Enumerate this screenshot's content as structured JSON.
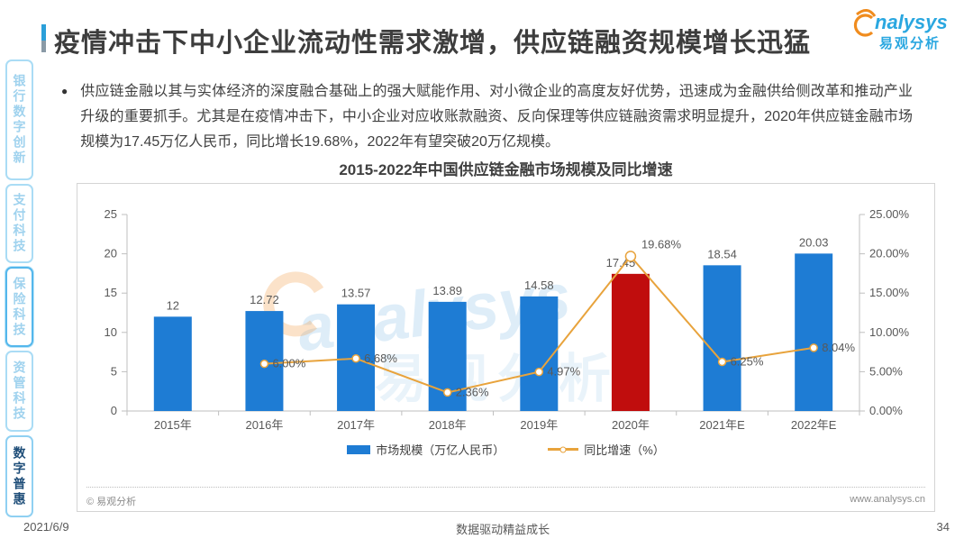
{
  "slide": {
    "title": "疫情冲击下中小企业流动性需求激增，供应链融资规模增长迅猛",
    "date": "2021/6/9",
    "footer_slogan": "数据驱动精益成长",
    "page_number": "34"
  },
  "logo": {
    "brand_en": "nalysys",
    "brand_cn": "易观分析"
  },
  "sidebar": {
    "items": [
      {
        "label": "银行数字创新"
      },
      {
        "label": "支付科技"
      },
      {
        "label": "保险科技"
      },
      {
        "label": "资管科技"
      },
      {
        "label": "数字普惠"
      }
    ]
  },
  "body": {
    "bullet_text": "供应链金融以其与实体经济的深度融合基础上的强大赋能作用、对小微企业的高度友好优势，迅速成为金融供给侧改革和推动产业升级的重要抓手。尤其是在疫情冲击下，中小企业对应收账款融资、反向保理等供应链融资需求明显提升，2020年供应链金融市场规模为17.45万亿人民币，同比增长19.68%，2022年有望突破20万亿规模。"
  },
  "chart": {
    "source_note": "© 易观分析",
    "website": "www.analysys.cn",
    "watermark_en": "analysys",
    "watermark_cn": "易观分析"
  },
  "chart_data": {
    "type": "bar",
    "title": "2015-2022年中国供应链金融市场规模及同比增速",
    "categories": [
      "2015年",
      "2016年",
      "2017年",
      "2018年",
      "2019年",
      "2020年",
      "2021年E",
      "2022年E"
    ],
    "series": [
      {
        "name": "市场规模（万亿人民币）",
        "type": "bar",
        "axis": "left",
        "values": [
          12,
          12.72,
          13.57,
          13.89,
          14.58,
          17.45,
          18.54,
          20.03
        ],
        "labels": [
          "12",
          "12.72",
          "13.57",
          "13.89",
          "14.58",
          "17.45",
          "18.54",
          "20.03"
        ]
      },
      {
        "name": "同比增速（%）",
        "type": "line",
        "axis": "right",
        "values": [
          null,
          6.0,
          6.68,
          2.36,
          4.97,
          19.68,
          6.25,
          8.04
        ],
        "labels": [
          null,
          "6.00%",
          "6.68%",
          "2.36%",
          "4.97%",
          "19.68%",
          "6.25%",
          "8.04%"
        ]
      }
    ],
    "left_axis": {
      "min": 0,
      "max": 25,
      "ticks": [
        0,
        5,
        10,
        15,
        20,
        25
      ]
    },
    "right_axis": {
      "min": 0,
      "max": 25,
      "tick_labels": [
        "0.00%",
        "5.00%",
        "10.00%",
        "15.00%",
        "20.00%",
        "25.00%"
      ]
    },
    "highlight_index": 5,
    "legend_position": "bottom",
    "grid": false,
    "colors": {
      "bar": "#1E7CD4",
      "bar_highlight": "#C00D0D",
      "line": "#E8A33C",
      "axis": "#BFBFBF",
      "label": "#595959"
    }
  }
}
